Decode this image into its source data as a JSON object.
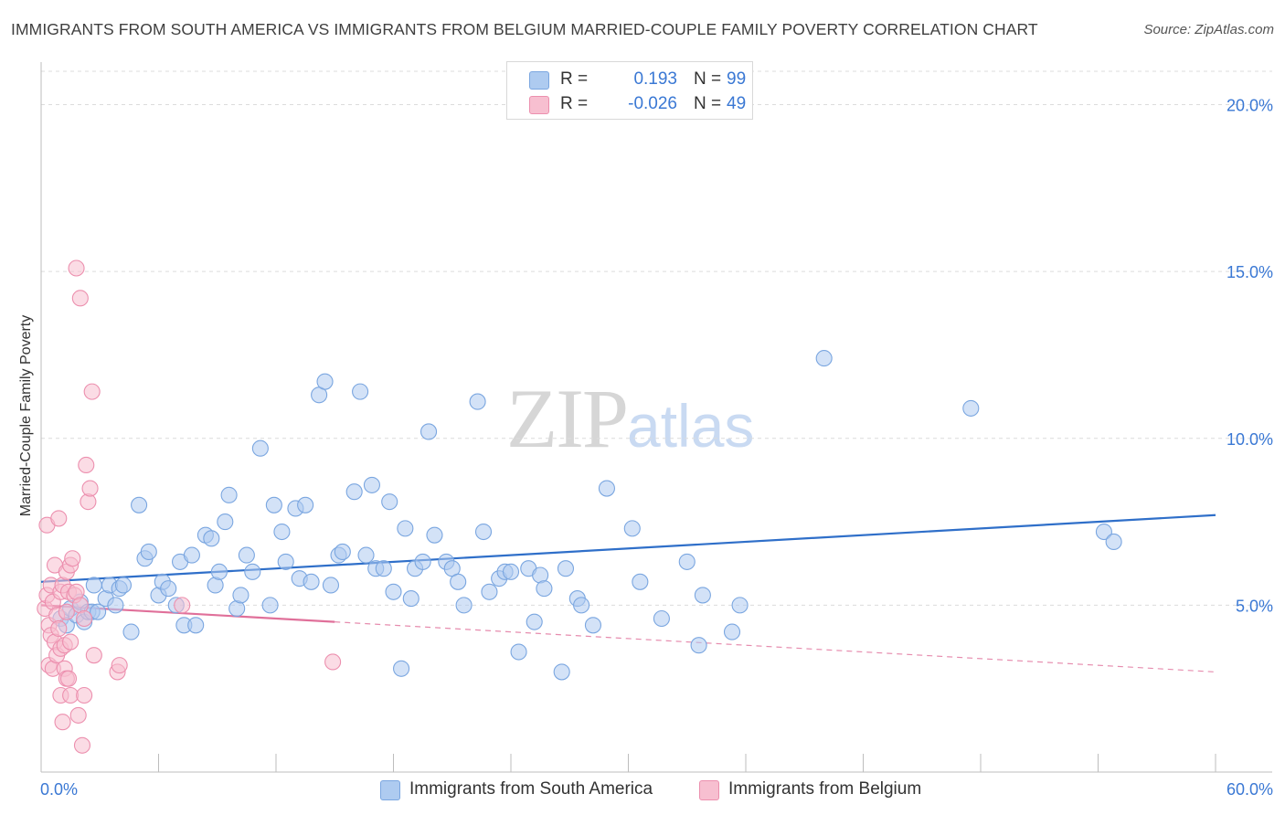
{
  "title": "IMMIGRANTS FROM SOUTH AMERICA VS IMMIGRANTS FROM BELGIUM MARRIED-COUPLE FAMILY POVERTY CORRELATION CHART",
  "source": "Source: ZipAtlas.com",
  "watermark": {
    "zip": "ZIP",
    "atlas": "atlas"
  },
  "legend": {
    "rows": [
      {
        "r_label": "R =",
        "r_value": "0.193",
        "n_label": "N =",
        "n_value": "99",
        "color": "#aecbf0",
        "border": "#7aa6e0"
      },
      {
        "r_label": "R =",
        "r_value": "-0.026",
        "n_label": "N =",
        "n_value": "49",
        "color": "#f7bfd0",
        "border": "#ec8fae"
      }
    ]
  },
  "chart_data": {
    "type": "scatter",
    "title": "IMMIGRANTS FROM SOUTH AMERICA VS IMMIGRANTS FROM BELGIUM MARRIED-COUPLE FAMILY POVERTY CORRELATION CHART",
    "xlabel": "",
    "ylabel": "Married-Couple Family Poverty",
    "xlim": [
      0,
      60
    ],
    "ylim": [
      0,
      21
    ],
    "x_tick_labels": [
      "0.0%",
      "60.0%"
    ],
    "y_ticks": [
      5,
      10,
      15,
      20
    ],
    "y_tick_labels": [
      "5.0%",
      "10.0%",
      "15.0%",
      "20.0%"
    ],
    "grid": true,
    "legend_position": "top-center",
    "series": [
      {
        "name": "Immigrants from South America",
        "color": "#7aa6e0",
        "fill": "#aecbf0",
        "line_color": "#2f6fc9",
        "trend": {
          "x": [
            0,
            60
          ],
          "y": [
            5.7,
            7.7
          ],
          "style": "solid"
        },
        "points": [
          [
            1.0,
            4.6
          ],
          [
            1.3,
            4.4
          ],
          [
            1.5,
            4.9
          ],
          [
            1.8,
            4.7
          ],
          [
            2.0,
            5.1
          ],
          [
            2.2,
            4.5
          ],
          [
            2.4,
            4.8
          ],
          [
            2.6,
            4.8
          ],
          [
            2.9,
            4.8
          ],
          [
            3.3,
            5.2
          ],
          [
            2.7,
            5.6
          ],
          [
            3.5,
            5.6
          ],
          [
            4.0,
            5.5
          ],
          [
            4.2,
            5.6
          ],
          [
            3.8,
            5.0
          ],
          [
            4.6,
            4.2
          ],
          [
            5.0,
            8.0
          ],
          [
            5.3,
            6.4
          ],
          [
            5.5,
            6.6
          ],
          [
            6.0,
            5.3
          ],
          [
            6.2,
            5.7
          ],
          [
            6.5,
            5.5
          ],
          [
            6.9,
            5.0
          ],
          [
            7.1,
            6.3
          ],
          [
            7.3,
            4.4
          ],
          [
            7.7,
            6.5
          ],
          [
            7.9,
            4.4
          ],
          [
            8.4,
            7.1
          ],
          [
            8.7,
            7.0
          ],
          [
            8.9,
            5.6
          ],
          [
            9.1,
            6.0
          ],
          [
            9.4,
            7.5
          ],
          [
            9.6,
            8.3
          ],
          [
            10.0,
            4.9
          ],
          [
            10.2,
            5.3
          ],
          [
            10.5,
            6.5
          ],
          [
            10.8,
            6.0
          ],
          [
            11.2,
            9.7
          ],
          [
            11.7,
            5.0
          ],
          [
            11.9,
            8.0
          ],
          [
            12.3,
            7.2
          ],
          [
            12.5,
            6.3
          ],
          [
            13.0,
            7.9
          ],
          [
            13.2,
            5.8
          ],
          [
            13.5,
            8.0
          ],
          [
            13.8,
            5.7
          ],
          [
            14.2,
            11.3
          ],
          [
            14.5,
            11.7
          ],
          [
            14.8,
            5.6
          ],
          [
            15.2,
            6.5
          ],
          [
            15.4,
            6.6
          ],
          [
            16.0,
            8.4
          ],
          [
            16.3,
            11.4
          ],
          [
            16.6,
            6.5
          ],
          [
            16.9,
            8.6
          ],
          [
            17.1,
            6.1
          ],
          [
            17.5,
            6.1
          ],
          [
            17.8,
            8.1
          ],
          [
            18.0,
            5.4
          ],
          [
            18.4,
            3.1
          ],
          [
            18.6,
            7.3
          ],
          [
            18.9,
            5.2
          ],
          [
            19.1,
            6.1
          ],
          [
            19.5,
            6.3
          ],
          [
            19.8,
            10.2
          ],
          [
            20.1,
            7.1
          ],
          [
            20.7,
            6.3
          ],
          [
            21.0,
            6.1
          ],
          [
            21.3,
            5.7
          ],
          [
            21.6,
            5.0
          ],
          [
            22.3,
            11.1
          ],
          [
            22.6,
            7.2
          ],
          [
            22.9,
            5.4
          ],
          [
            23.4,
            5.8
          ],
          [
            23.7,
            6.0
          ],
          [
            24.0,
            6.0
          ],
          [
            24.4,
            3.6
          ],
          [
            24.9,
            6.1
          ],
          [
            25.2,
            4.5
          ],
          [
            25.5,
            5.9
          ],
          [
            25.7,
            5.5
          ],
          [
            26.6,
            3.0
          ],
          [
            26.8,
            6.1
          ],
          [
            27.4,
            5.2
          ],
          [
            27.6,
            5.0
          ],
          [
            28.2,
            4.4
          ],
          [
            28.9,
            8.5
          ],
          [
            30.2,
            7.3
          ],
          [
            30.6,
            5.7
          ],
          [
            31.7,
            4.6
          ],
          [
            33.0,
            6.3
          ],
          [
            33.6,
            3.8
          ],
          [
            33.8,
            5.3
          ],
          [
            35.3,
            4.2
          ],
          [
            35.7,
            5.0
          ],
          [
            40.0,
            12.4
          ],
          [
            47.5,
            10.9
          ],
          [
            54.3,
            7.2
          ],
          [
            54.8,
            6.9
          ]
        ]
      },
      {
        "name": "Immigrants from Belgium",
        "color": "#ec8fae",
        "fill": "#f7bfd0",
        "line_color": "#e0709a",
        "trend": {
          "x": [
            0,
            60
          ],
          "y": [
            5.0,
            3.0
          ],
          "style": "solid 0–15, dashed 15–60"
        },
        "points": [
          [
            0.2,
            4.9
          ],
          [
            0.3,
            7.4
          ],
          [
            0.3,
            5.3
          ],
          [
            0.4,
            4.4
          ],
          [
            0.4,
            3.2
          ],
          [
            0.5,
            5.6
          ],
          [
            0.5,
            4.1
          ],
          [
            0.6,
            3.1
          ],
          [
            0.6,
            5.1
          ],
          [
            0.7,
            6.2
          ],
          [
            0.7,
            3.9
          ],
          [
            0.8,
            4.7
          ],
          [
            0.8,
            3.5
          ],
          [
            0.9,
            7.6
          ],
          [
            0.9,
            4.3
          ],
          [
            1.0,
            5.4
          ],
          [
            1.0,
            3.7
          ],
          [
            1.0,
            2.3
          ],
          [
            1.1,
            1.5
          ],
          [
            1.1,
            5.6
          ],
          [
            1.2,
            3.1
          ],
          [
            1.2,
            3.8
          ],
          [
            1.3,
            4.8
          ],
          [
            1.3,
            2.8
          ],
          [
            1.3,
            6.0
          ],
          [
            1.4,
            5.4
          ],
          [
            1.4,
            2.8
          ],
          [
            1.5,
            2.3
          ],
          [
            1.5,
            6.2
          ],
          [
            1.5,
            3.9
          ],
          [
            1.6,
            6.4
          ],
          [
            1.7,
            5.3
          ],
          [
            1.8,
            5.4
          ],
          [
            1.8,
            15.1
          ],
          [
            1.9,
            1.7
          ],
          [
            2.0,
            5.0
          ],
          [
            2.0,
            14.2
          ],
          [
            2.1,
            0.8
          ],
          [
            2.2,
            4.6
          ],
          [
            2.2,
            2.3
          ],
          [
            2.3,
            9.2
          ],
          [
            2.4,
            8.1
          ],
          [
            2.5,
            8.5
          ],
          [
            2.6,
            11.4
          ],
          [
            2.7,
            3.5
          ],
          [
            3.9,
            3.0
          ],
          [
            4.0,
            3.2
          ],
          [
            7.2,
            5.0
          ],
          [
            14.9,
            3.3
          ]
        ]
      }
    ]
  }
}
